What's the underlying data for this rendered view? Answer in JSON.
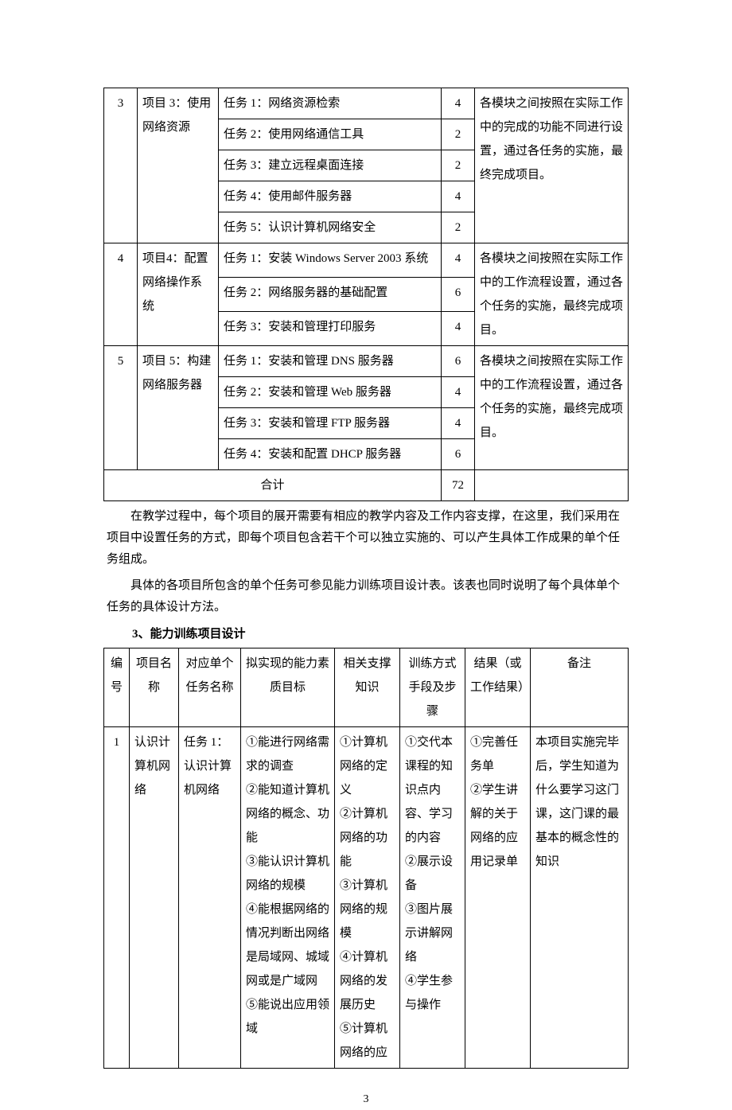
{
  "table1": {
    "rows": [
      {
        "no": "3",
        "proj": "项目 3：使用网络资源",
        "task": "任务 1：网络资源检索",
        "hrs": "4",
        "note_start": true,
        "note": "各模块之间按照在实际工作中的完成的功能不同进行设置，通过各任务的实施，最终完成项目。",
        "note_rows": 5
      },
      {
        "task": "任务 2：使用网络通信工具",
        "hrs": "2"
      },
      {
        "task": "任务 3：建立远程桌面连接",
        "hrs": "2"
      },
      {
        "task": "任务 4：使用邮件服务器",
        "hrs": "4"
      },
      {
        "task": "任务 5：认识计算机网络安全",
        "hrs": "2"
      },
      {
        "no": "4",
        "proj": "项目4：配置网络操作系统",
        "task": "任务 1：安装 Windows Server 2003 系统",
        "hrs": "4",
        "note_start": true,
        "note": "各模块之间按照在实际工作中的工作流程设置，通过各个任务的实施，最终完成项目。",
        "note_rows": 3
      },
      {
        "task": "任务 2：网络服务器的基础配置",
        "hrs": "6"
      },
      {
        "task": "任务 3：安装和管理打印服务",
        "hrs": "4"
      },
      {
        "no": "5",
        "proj": "项目 5：构建网络服务器",
        "task": "任务 1：安装和管理 DNS 服务器",
        "hrs": "6",
        "note_start": true,
        "note": "各模块之间按照在实际工作中的工作流程设置，通过各个任务的实施，最终完成项目。",
        "note_rows": 4
      },
      {
        "task": "任务 2：安装和管理 Web 服务器",
        "hrs": "4"
      },
      {
        "task": "任务 3：安装和管理 FTP 服务器",
        "hrs": "4"
      },
      {
        "task": "任务 4：安装和配置 DHCP 服务器",
        "hrs": "6"
      }
    ],
    "total_label": "合计",
    "total_hours": "72"
  },
  "paragraphs": {
    "p1": "在教学过程中，每个项目的展开需要有相应的教学内容及工作内容支撑，在这里，我们采用在项目中设置任务的方式，即每个项目包含若干个可以独立实施的、可以产生具体工作成果的单个任务组成。",
    "p2": "具体的各项目所包含的单个任务可参见能力训练项目设计表。该表也同时说明了每个具体单个任务的具体设计方法。"
  },
  "heading": "3、能力训练项目设计",
  "table2": {
    "headers": [
      "编号",
      "项目名称",
      "对应单个任务名称",
      "拟实现的能力素质目标",
      "相关支撑知识",
      "训练方式手段及步骤",
      "结果（或工作结果）",
      "备注"
    ],
    "row": {
      "no": "1",
      "proj": "认识计算机网络",
      "task": "任务 1：认识计算机网络",
      "ability": "①能进行网络需求的调查\n②能知道计算机网络的概念、功能\n③能认识计算机网络的规模\n④能根据网络的情况判断出网络是局域网、城域网或是广域网\n⑤能说出应用领域",
      "knowledge": "①计算机网络的定义\n②计算机网络的功能\n③计算机网络的规模\n④计算机网络的发展历史\n⑤计算机网络的应",
      "method": "①交代本课程的知识点内容、学习的内容\n②展示设备\n③图片展示讲解网络\n④学生参与操作",
      "result": "①完善任务单\n②学生讲解的关于网络的应用记录单",
      "note": "本项目实施完毕后，学生知道为什么要学习这门课，这门课的最基本的概念性的知识"
    }
  },
  "pagenum": "3"
}
